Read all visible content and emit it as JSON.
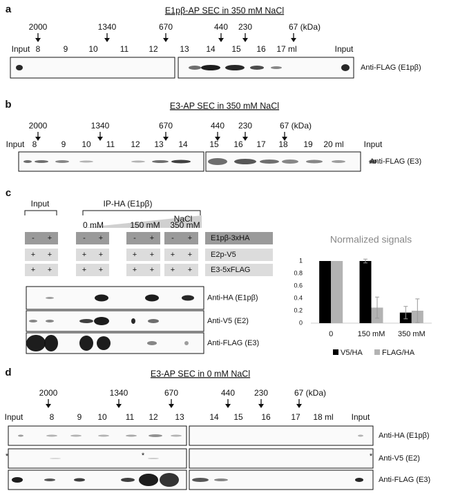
{
  "panels": [
    {
      "label": "a",
      "title": "E1pβ-AP SEC in 350 mM NaCl",
      "markers": [
        "2000",
        "1340",
        "670",
        "440",
        "230",
        "67 (kDa)"
      ],
      "fractions": [
        "Input",
        "8",
        "9",
        "10",
        "11",
        "12",
        "13",
        "14",
        "15",
        "16",
        "17 ml",
        "Input"
      ],
      "blots": [
        "Anti-FLAG (E1pβ)"
      ]
    },
    {
      "label": "b",
      "title": "E3-AP SEC in 350 mM NaCl",
      "markers": [
        "2000",
        "1340",
        "670",
        "440",
        "230",
        "67 (kDa)"
      ],
      "fractions": [
        "Input",
        "8",
        "9",
        "10",
        "11",
        "12",
        "13",
        "14",
        "15",
        "16",
        "17",
        "18",
        "19",
        "20 ml",
        "Input"
      ],
      "blots": [
        "Anti-FLAG (E3)"
      ]
    },
    {
      "label": "c",
      "input_label": "Input",
      "ip_label": "IP-HA  (E1pβ)",
      "gradient_label": "NaCl",
      "conditions": [
        "0 mM",
        "150 mM",
        "350 mM"
      ],
      "rows": [
        {
          "name": "E1pβ-3xHA",
          "signs": [
            "-",
            "+",
            "-",
            "+",
            "-",
            "+",
            "-",
            "+"
          ]
        },
        {
          "name": "E2p-V5",
          "signs": [
            "+",
            "+",
            "+",
            "+",
            "+",
            "+",
            "+",
            "+"
          ]
        },
        {
          "name": "E3-5xFLAG",
          "signs": [
            "+",
            "+",
            "+",
            "+",
            "+",
            "+",
            "+",
            "+"
          ]
        }
      ],
      "blots": [
        "Anti-HA (E1pβ)",
        "Anti-V5 (E2)",
        "Anti-FLAG (E3)"
      ],
      "chart": {
        "type": "bar",
        "title": "Normalized signals",
        "categories": [
          "0",
          "150 mM",
          "350 mM"
        ],
        "series": [
          {
            "name": "V5/HA",
            "color": "#000000",
            "values": [
              1,
              1,
              0.17
            ],
            "errors": [
              null,
              0.03,
              0.1
            ]
          },
          {
            "name": "FLAG/HA",
            "color": "#b3b3b3",
            "values": [
              1,
              0.25,
              0.2
            ],
            "errors": [
              null,
              0.17,
              0.19
            ]
          }
        ],
        "ylim": [
          0,
          1.1
        ],
        "yticks": [
          0,
          0.2,
          0.4,
          0.6,
          0.8,
          1
        ],
        "legend": "bottom"
      }
    },
    {
      "label": "d",
      "title": "E3-AP SEC in 0 mM NaCl",
      "markers": [
        "2000",
        "1340",
        "670",
        "440",
        "230",
        "67 (kDa)"
      ],
      "fractions": [
        "Input",
        "8",
        "9",
        "10",
        "11",
        "12",
        "13",
        "14",
        "15",
        "16",
        "17",
        "18 ml",
        "Input"
      ],
      "blots": [
        "Anti-HA (E1pβ)",
        "Anti-V5 (E2)",
        "Anti-FLAG (E3)"
      ],
      "asterisks": [
        "*",
        "*",
        "*"
      ]
    }
  ]
}
